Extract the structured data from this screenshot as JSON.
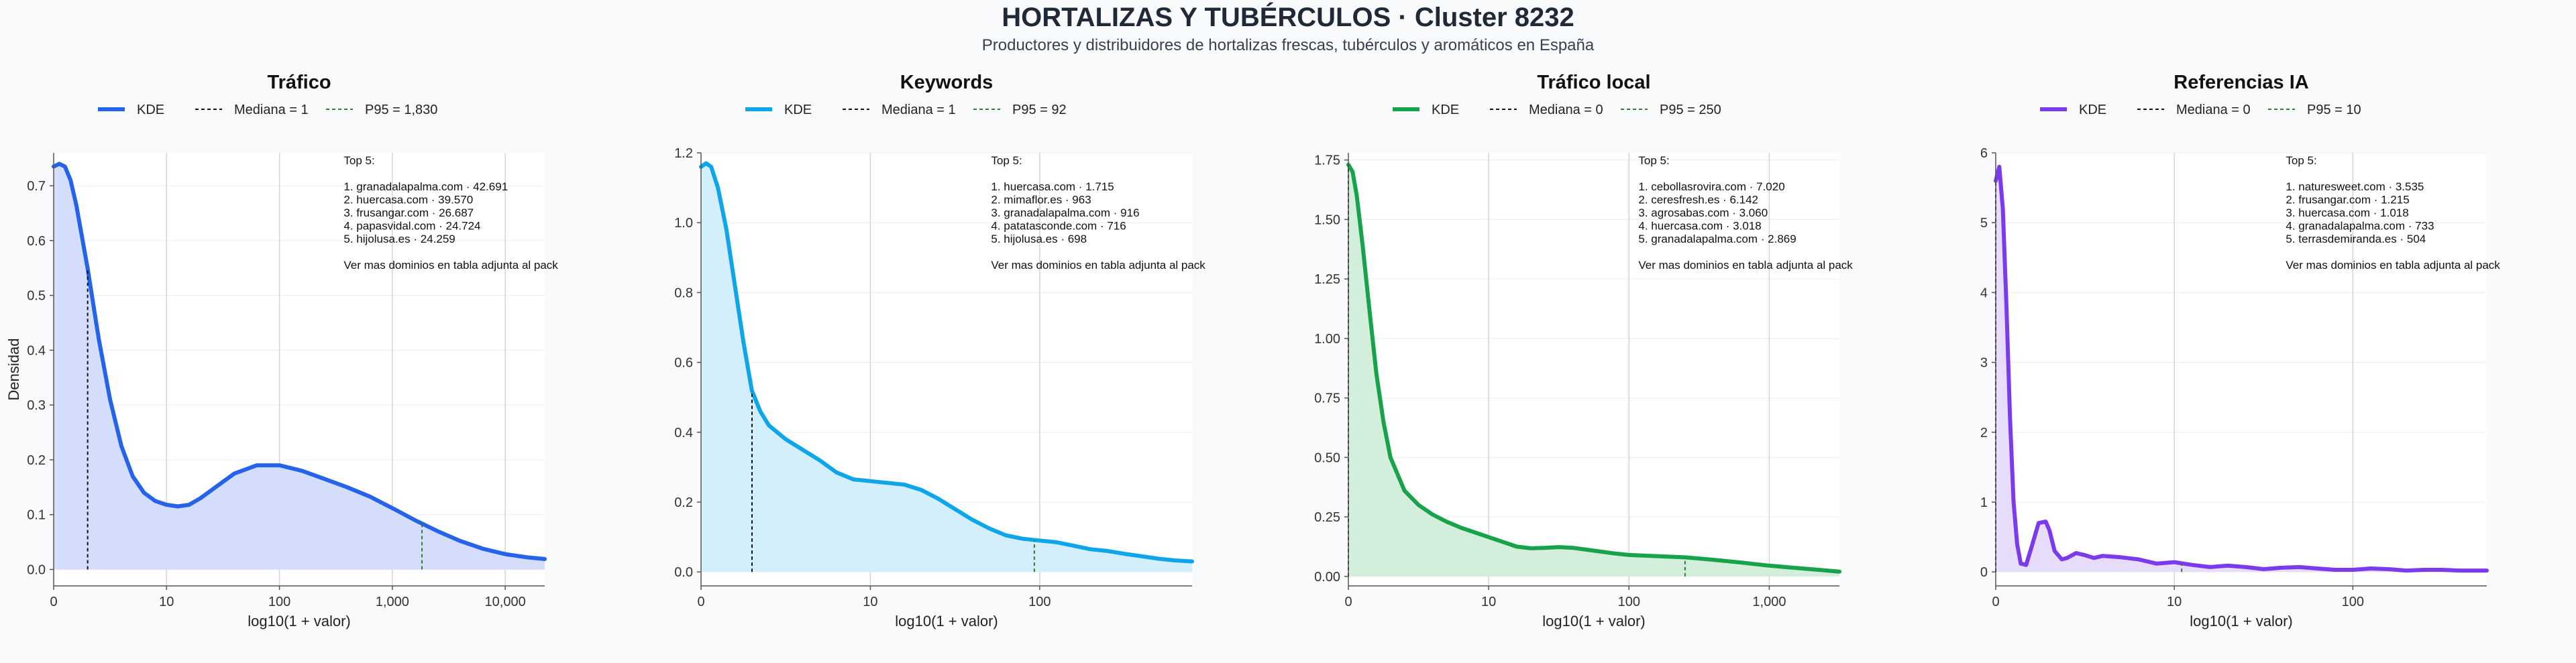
{
  "title": "HORTALIZAS Y TUBÉRCULOS · Cluster 8232",
  "subtitle": "Productores y distribuidores de hortalizas frescas, tubérculos y aromáticos en España",
  "colors": {
    "median_line": "#111111",
    "p95_line": "#2e7d32",
    "grid": "#d4d4d4",
    "axis": "#555555"
  },
  "chart_data": [
    {
      "type": "area",
      "title": "Tráfico",
      "xlabel": "log10(1 + valor)",
      "ylabel": "Densidad",
      "color": "#2563eb",
      "fill": "#d4defa",
      "x_scale": "log10(1+x)",
      "xlim": [
        0,
        4.35
      ],
      "ylim": [
        -0.03,
        0.76
      ],
      "xticks": [
        0,
        1,
        2,
        3,
        4
      ],
      "xtick_labels": [
        "0",
        "10",
        "100",
        "1,000",
        "10,000"
      ],
      "yticks": [
        0,
        0.1,
        0.2,
        0.3,
        0.4,
        0.5,
        0.6,
        0.7
      ],
      "ytick_labels": [
        "0.0",
        "0.1",
        "0.2",
        "0.3",
        "0.4",
        "0.5",
        "0.6",
        "0.7"
      ],
      "legend": [
        "KDE",
        "Mediana = 1",
        "P95 = 1,830"
      ],
      "median": 1,
      "p95": 1830,
      "series": [
        {
          "name": "KDE",
          "x": [
            0,
            0.05,
            0.1,
            0.15,
            0.2,
            0.3,
            0.4,
            0.5,
            0.6,
            0.7,
            0.8,
            0.9,
            1.0,
            1.1,
            1.2,
            1.3,
            1.4,
            1.6,
            1.8,
            2.0,
            2.2,
            2.4,
            2.6,
            2.8,
            3.0,
            3.2,
            3.4,
            3.6,
            3.8,
            4.0,
            4.2,
            4.35
          ],
          "y": [
            0.735,
            0.74,
            0.735,
            0.71,
            0.665,
            0.55,
            0.42,
            0.31,
            0.225,
            0.17,
            0.14,
            0.125,
            0.118,
            0.115,
            0.118,
            0.13,
            0.145,
            0.175,
            0.19,
            0.19,
            0.18,
            0.165,
            0.15,
            0.133,
            0.112,
            0.09,
            0.07,
            0.052,
            0.038,
            0.028,
            0.022,
            0.019
          ]
        }
      ],
      "top5": [
        "Top 5:",
        "",
        "1. granadalapalma.com · 42.691",
        "2. huercasa.com · 39.570",
        "3. frusangar.com · 26.687",
        "4. papasvidal.com · 24.724",
        "5. hijolusa.es · 24.259",
        "",
        "Ver mas dominios en tabla adjunta al pack"
      ]
    },
    {
      "type": "area",
      "title": "Keywords",
      "xlabel": "log10(1 + valor)",
      "ylabel": "",
      "color": "#0ea5e9",
      "fill": "#d3effc",
      "x_scale": "log10(1+x)",
      "xlim": [
        0,
        2.9
      ],
      "ylim": [
        -0.04,
        1.2
      ],
      "xticks": [
        0,
        1,
        2
      ],
      "xtick_labels": [
        "0",
        "10",
        "100"
      ],
      "yticks": [
        0,
        0.2,
        0.4,
        0.6,
        0.8,
        1.0,
        1.2
      ],
      "ytick_labels": [
        "0.0",
        "0.2",
        "0.4",
        "0.6",
        "0.8",
        "1.0",
        "1.2"
      ],
      "legend": [
        "KDE",
        "Mediana = 1",
        "P95 = 92"
      ],
      "median": 1,
      "p95": 92,
      "series": [
        {
          "name": "KDE",
          "x": [
            0,
            0.03,
            0.06,
            0.1,
            0.15,
            0.2,
            0.25,
            0.3,
            0.35,
            0.4,
            0.5,
            0.6,
            0.7,
            0.8,
            0.9,
            1.0,
            1.1,
            1.2,
            1.3,
            1.4,
            1.5,
            1.6,
            1.7,
            1.8,
            1.9,
            2.0,
            2.1,
            2.2,
            2.3,
            2.4,
            2.5,
            2.6,
            2.7,
            2.8,
            2.9
          ],
          "y": [
            1.16,
            1.17,
            1.16,
            1.1,
            0.98,
            0.82,
            0.66,
            0.52,
            0.46,
            0.42,
            0.38,
            0.35,
            0.32,
            0.285,
            0.265,
            0.26,
            0.255,
            0.25,
            0.235,
            0.21,
            0.18,
            0.15,
            0.125,
            0.105,
            0.095,
            0.09,
            0.085,
            0.075,
            0.065,
            0.06,
            0.052,
            0.045,
            0.038,
            0.033,
            0.03
          ]
        }
      ],
      "top5": [
        "Top 5:",
        "",
        "1. huercasa.com · 1.715",
        "2. mimaflor.es · 963",
        "3. granadalapalma.com · 916",
        "4. patatasconde.com · 716",
        "5. hijolusa.es · 698",
        "",
        "Ver mas dominios en tabla adjunta al pack"
      ]
    },
    {
      "type": "area",
      "title": "Tráfico local",
      "xlabel": "log10(1 + valor)",
      "ylabel": "",
      "color": "#16a34a",
      "fill": "#d3eedb",
      "x_scale": "log10(1+x)",
      "xlim": [
        0,
        3.5
      ],
      "ylim": [
        -0.04,
        1.78
      ],
      "xticks": [
        0,
        1,
        2,
        3
      ],
      "xtick_labels": [
        "0",
        "10",
        "100",
        "1,000"
      ],
      "yticks": [
        0,
        0.25,
        0.5,
        0.75,
        1.0,
        1.25,
        1.5,
        1.75
      ],
      "ytick_labels": [
        "0.00",
        "0.25",
        "0.50",
        "0.75",
        "1.00",
        "1.25",
        "1.50",
        "1.75"
      ],
      "legend": [
        "KDE",
        "Mediana = 0",
        "P95 = 250"
      ],
      "median": 0,
      "p95": 250,
      "series": [
        {
          "name": "KDE",
          "x": [
            0,
            0.03,
            0.06,
            0.1,
            0.15,
            0.2,
            0.25,
            0.3,
            0.4,
            0.5,
            0.6,
            0.7,
            0.8,
            0.9,
            1.0,
            1.1,
            1.2,
            1.3,
            1.4,
            1.5,
            1.6,
            1.7,
            1.8,
            1.9,
            2.0,
            2.2,
            2.4,
            2.6,
            2.8,
            3.0,
            3.2,
            3.4,
            3.5
          ],
          "y": [
            1.73,
            1.7,
            1.6,
            1.4,
            1.12,
            0.85,
            0.65,
            0.5,
            0.36,
            0.3,
            0.26,
            0.23,
            0.205,
            0.185,
            0.165,
            0.145,
            0.125,
            0.118,
            0.12,
            0.123,
            0.12,
            0.112,
            0.104,
            0.096,
            0.09,
            0.085,
            0.08,
            0.07,
            0.058,
            0.045,
            0.035,
            0.025,
            0.02
          ]
        }
      ],
      "top5": [
        "Top 5:",
        "",
        "1. cebollasrovira.com · 7.020",
        "2. ceresfresh.es · 6.142",
        "3. agrosabas.com · 3.060",
        "4. huercasa.com · 3.018",
        "5. granadalapalma.com · 2.869",
        "",
        "Ver mas dominios en tabla adjunta al pack"
      ]
    },
    {
      "type": "area",
      "title": "Referencias IA",
      "xlabel": "log10(1 + valor)",
      "ylabel": "",
      "color": "#7c3aed",
      "fill": "#e8dcfb",
      "x_scale": "log10(1+x)",
      "xlim": [
        0,
        2.75
      ],
      "ylim": [
        -0.2,
        6.0
      ],
      "xticks": [
        0,
        1,
        2
      ],
      "xtick_labels": [
        "0",
        "10",
        "100"
      ],
      "yticks": [
        0,
        1,
        2,
        3,
        4,
        5,
        6
      ],
      "ytick_labels": [
        "0",
        "1",
        "2",
        "3",
        "4",
        "5",
        "6"
      ],
      "legend": [
        "KDE",
        "Mediana = 0",
        "P95 = 10"
      ],
      "median": 0,
      "p95": 10,
      "series": [
        {
          "name": "KDE",
          "x": [
            0,
            0.02,
            0.04,
            0.06,
            0.08,
            0.1,
            0.12,
            0.14,
            0.17,
            0.2,
            0.24,
            0.28,
            0.3,
            0.33,
            0.37,
            0.4,
            0.45,
            0.5,
            0.55,
            0.6,
            0.7,
            0.8,
            0.9,
            1.0,
            1.1,
            1.2,
            1.3,
            1.4,
            1.5,
            1.6,
            1.7,
            1.8,
            1.9,
            2.0,
            2.1,
            2.2,
            2.3,
            2.4,
            2.5,
            2.6,
            2.75
          ],
          "y": [
            5.6,
            5.8,
            5.2,
            3.8,
            2.2,
            1.0,
            0.4,
            0.12,
            0.1,
            0.35,
            0.7,
            0.72,
            0.6,
            0.3,
            0.18,
            0.2,
            0.27,
            0.24,
            0.2,
            0.23,
            0.21,
            0.18,
            0.12,
            0.14,
            0.1,
            0.07,
            0.09,
            0.07,
            0.04,
            0.06,
            0.07,
            0.05,
            0.03,
            0.03,
            0.05,
            0.04,
            0.02,
            0.03,
            0.03,
            0.02,
            0.02
          ]
        }
      ],
      "top5": [
        "Top 5:",
        "",
        "1. naturesweet.com · 3.535",
        "2. frusangar.com · 1.215",
        "3. huercasa.com · 1.018",
        "4. granadalapalma.com · 733",
        "5. terrasdemiranda.es · 504",
        "",
        "Ver mas dominios en tabla adjunta al pack"
      ]
    }
  ]
}
